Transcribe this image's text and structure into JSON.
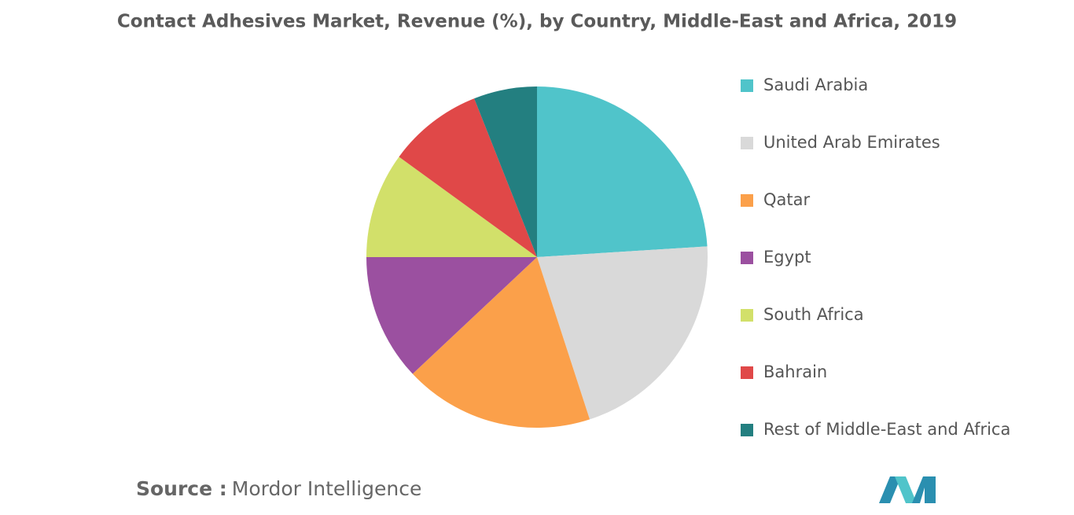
{
  "chart_data": {
    "type": "pie",
    "title": "Contact Adhesives Market, Revenue (%), by Country, Middle-East and Africa, 2019",
    "categories": [
      "Saudi Arabia",
      "United Arab Emirates",
      "Qatar",
      "Egypt",
      "South Africa",
      "Bahrain",
      "Rest of Middle-East and Africa"
    ],
    "values": [
      24,
      21,
      18,
      12,
      10,
      9,
      6
    ],
    "colors": [
      "#50c4ca",
      "#d9d9d9",
      "#fba04a",
      "#9b50a0",
      "#d2e06a",
      "#e04848",
      "#237f80"
    ],
    "legend": "right"
  },
  "source_label": "Source :",
  "source": "Mordor Intelligence"
}
